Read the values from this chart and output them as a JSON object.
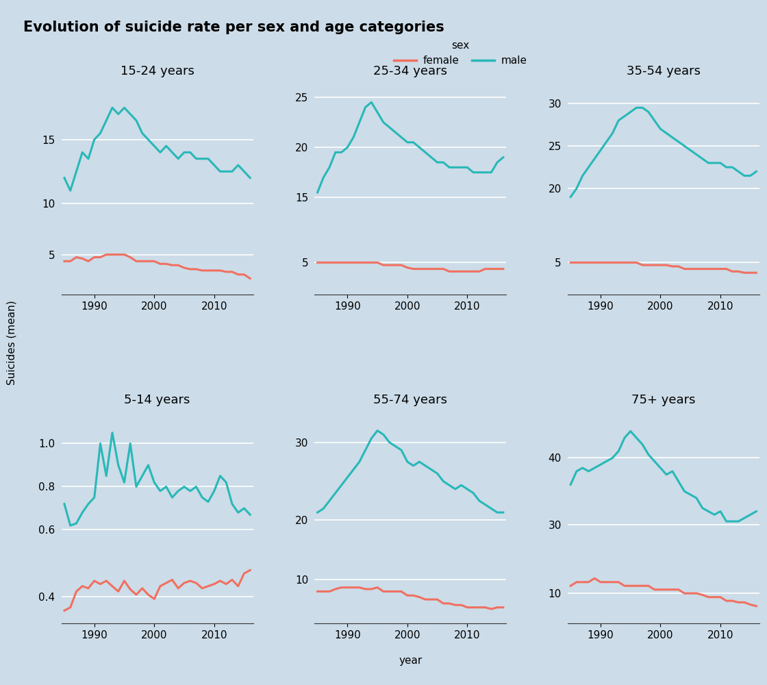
{
  "title": "Evolution of suicide rate per sex and age categories",
  "ylabel": "Suicides (mean)",
  "xlabel": "year",
  "legend_label_female": "female",
  "legend_label_male": "male",
  "legend_title": "sex",
  "bg_color": "#ccdce8",
  "female_color": "#f07060",
  "male_color": "#28b8b8",
  "line_width": 2.2,
  "years": [
    1985,
    1986,
    1987,
    1988,
    1989,
    1990,
    1991,
    1992,
    1993,
    1994,
    1995,
    1996,
    1997,
    1998,
    1999,
    2000,
    2001,
    2002,
    2003,
    2004,
    2005,
    2006,
    2007,
    2008,
    2009,
    2010,
    2011,
    2012,
    2013,
    2014,
    2015,
    2016
  ],
  "subplots": [
    {
      "title": "15-24 years",
      "male": [
        12.0,
        11.0,
        12.5,
        14.0,
        13.5,
        15.0,
        15.5,
        16.5,
        17.5,
        17.0,
        17.5,
        17.0,
        16.5,
        15.5,
        15.0,
        14.5,
        14.0,
        14.5,
        14.0,
        13.5,
        14.0,
        14.0,
        13.5,
        13.5,
        13.5,
        13.0,
        12.5,
        12.5,
        12.5,
        13.0,
        12.5,
        12.0
      ],
      "female": [
        4.5,
        4.5,
        4.8,
        4.7,
        4.5,
        4.8,
        4.8,
        5.0,
        5.0,
        5.0,
        5.0,
        4.8,
        4.5,
        4.5,
        4.5,
        4.5,
        4.3,
        4.3,
        4.2,
        4.2,
        4.0,
        3.9,
        3.9,
        3.8,
        3.8,
        3.8,
        3.8,
        3.7,
        3.7,
        3.5,
        3.5,
        3.2
      ],
      "yticks_male": [
        10,
        15
      ],
      "yticks_female": [
        5
      ],
      "ylim_male": [
        8.5,
        19.5
      ],
      "ylim_female": [
        2.0,
        6.8
      ]
    },
    {
      "title": "25-34 years",
      "male": [
        15.5,
        17.0,
        18.0,
        19.5,
        19.5,
        20.0,
        21.0,
        22.5,
        24.0,
        24.5,
        23.5,
        22.5,
        22.0,
        21.5,
        21.0,
        20.5,
        20.5,
        20.0,
        19.5,
        19.0,
        18.5,
        18.5,
        18.0,
        18.0,
        18.0,
        18.0,
        17.5,
        17.5,
        17.5,
        17.5,
        18.5,
        19.0
      ],
      "female": [
        5.0,
        5.0,
        5.0,
        5.0,
        5.0,
        5.0,
        5.0,
        5.0,
        5.0,
        5.0,
        5.0,
        4.8,
        4.8,
        4.8,
        4.8,
        4.6,
        4.5,
        4.5,
        4.5,
        4.5,
        4.5,
        4.5,
        4.3,
        4.3,
        4.3,
        4.3,
        4.3,
        4.3,
        4.5,
        4.5,
        4.5,
        4.5
      ],
      "yticks_male": [
        15,
        20,
        25
      ],
      "yticks_female": [
        5
      ],
      "ylim_male": [
        12.5,
        26.5
      ],
      "ylim_female": [
        2.5,
        7.5
      ]
    },
    {
      "title": "35-54 years",
      "male": [
        19.0,
        20.0,
        21.5,
        22.5,
        23.5,
        24.5,
        25.5,
        26.5,
        28.0,
        28.5,
        29.0,
        29.5,
        29.5,
        29.0,
        28.0,
        27.0,
        26.5,
        26.0,
        25.5,
        25.0,
        24.5,
        24.0,
        23.5,
        23.0,
        23.0,
        23.0,
        22.5,
        22.5,
        22.0,
        21.5,
        21.5,
        22.0
      ],
      "female": [
        5.0,
        5.0,
        5.0,
        5.0,
        5.0,
        5.0,
        5.0,
        5.0,
        5.0,
        5.0,
        5.0,
        5.0,
        4.8,
        4.8,
        4.8,
        4.8,
        4.8,
        4.7,
        4.7,
        4.5,
        4.5,
        4.5,
        4.5,
        4.5,
        4.5,
        4.5,
        4.5,
        4.3,
        4.3,
        4.2,
        4.2,
        4.2
      ],
      "yticks_male": [
        20,
        25,
        30
      ],
      "yticks_female": [
        5
      ],
      "ylim_male": [
        16.0,
        32.5
      ],
      "ylim_female": [
        2.5,
        7.5
      ]
    },
    {
      "title": "5-14 years",
      "male": [
        0.72,
        0.62,
        0.63,
        0.68,
        0.72,
        0.75,
        1.0,
        0.85,
        1.05,
        0.9,
        0.82,
        1.0,
        0.8,
        0.85,
        0.9,
        0.82,
        0.78,
        0.8,
        0.75,
        0.78,
        0.8,
        0.78,
        0.8,
        0.75,
        0.73,
        0.78,
        0.85,
        0.82,
        0.72,
        0.68,
        0.7,
        0.67
      ],
      "female": [
        0.27,
        0.3,
        0.45,
        0.5,
        0.48,
        0.55,
        0.52,
        0.55,
        0.5,
        0.45,
        0.55,
        0.47,
        0.42,
        0.48,
        0.42,
        0.38,
        0.5,
        0.53,
        0.56,
        0.48,
        0.53,
        0.55,
        0.53,
        0.48,
        0.5,
        0.52,
        0.55,
        0.52,
        0.56,
        0.5,
        0.62,
        0.65
      ],
      "yticks_male": [
        0.6,
        0.8,
        1.0
      ],
      "yticks_female": [
        0.4
      ],
      "ylim_male": [
        0.5,
        1.15
      ],
      "ylim_female": [
        0.15,
        0.75
      ]
    },
    {
      "title": "55-74 years",
      "male": [
        21.0,
        21.5,
        22.5,
        23.5,
        24.5,
        25.5,
        26.5,
        27.5,
        29.0,
        30.5,
        31.5,
        31.0,
        30.0,
        29.5,
        29.0,
        27.5,
        27.0,
        27.5,
        27.0,
        26.5,
        26.0,
        25.0,
        24.5,
        24.0,
        24.5,
        24.0,
        23.5,
        22.5,
        22.0,
        21.5,
        21.0,
        21.0
      ],
      "female": [
        8.5,
        8.5,
        8.5,
        8.8,
        9.0,
        9.0,
        9.0,
        9.0,
        8.8,
        8.8,
        9.0,
        8.5,
        8.5,
        8.5,
        8.5,
        8.0,
        8.0,
        7.8,
        7.5,
        7.5,
        7.5,
        7.0,
        7.0,
        6.8,
        6.8,
        6.5,
        6.5,
        6.5,
        6.5,
        6.3,
        6.5,
        6.5
      ],
      "yticks_male": [
        20,
        30
      ],
      "yticks_female": [
        10
      ],
      "ylim_male": [
        16.0,
        34.0
      ],
      "ylim_female": [
        4.5,
        12.5
      ]
    },
    {
      "title": "75+ years",
      "male": [
        36.0,
        38.0,
        38.5,
        38.0,
        38.5,
        39.0,
        39.5,
        40.0,
        41.0,
        43.0,
        44.0,
        43.0,
        42.0,
        40.5,
        39.5,
        38.5,
        37.5,
        38.0,
        36.5,
        35.0,
        34.5,
        34.0,
        32.5,
        32.0,
        31.5,
        32.0,
        30.5,
        30.5,
        30.5,
        31.0,
        31.5,
        32.0
      ],
      "female": [
        11.0,
        11.5,
        11.5,
        11.5,
        12.0,
        11.5,
        11.5,
        11.5,
        11.5,
        11.0,
        11.0,
        11.0,
        11.0,
        11.0,
        10.5,
        10.5,
        10.5,
        10.5,
        10.5,
        10.0,
        10.0,
        10.0,
        9.8,
        9.5,
        9.5,
        9.5,
        9.0,
        9.0,
        8.8,
        8.8,
        8.5,
        8.3
      ],
      "yticks_male": [
        30,
        40
      ],
      "yticks_female": [
        10
      ],
      "ylim_male": [
        26.0,
        47.0
      ],
      "ylim_female": [
        6.0,
        14.5
      ]
    }
  ]
}
